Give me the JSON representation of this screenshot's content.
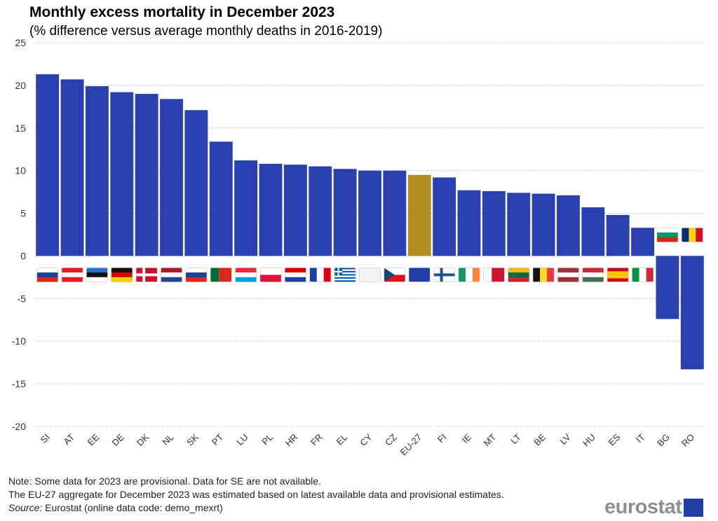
{
  "header": {
    "title": "Monthly excess mortality in December 2023",
    "subtitle": "(% difference versus average monthly deaths in 2016-2019)"
  },
  "notes": {
    "line1": "Note: Some data for 2023 are provisional. Data for SE are not available.",
    "line2": "The EU-27 aggregate for December 2023 was estimated based on latest available data and provisional estimates.",
    "source_label": "Source:",
    "source_text": " Eurostat (online data code: demo_mexrt)"
  },
  "logo": {
    "text": "eurostat"
  },
  "colors": {
    "bar": "#2a40b0",
    "highlight": "#b38f22",
    "grid": "#c8c8c8"
  },
  "chart_data": {
    "type": "bar",
    "title": "Monthly excess mortality in December 2023",
    "subtitle": "(% difference versus average monthly deaths in 2016-2019)",
    "xlabel": "",
    "ylabel": "",
    "ylim": [
      -20,
      25
    ],
    "yticks": [
      25,
      20,
      15,
      10,
      5,
      0,
      -5,
      -10,
      -15,
      -20
    ],
    "grid": true,
    "highlight_category": "EU-27",
    "categories": [
      "SI",
      "AT",
      "EE",
      "DE",
      "DK",
      "NL",
      "SK",
      "PT",
      "LU",
      "PL",
      "HR",
      "FR",
      "EL",
      "CY",
      "CZ",
      "EU-27",
      "FI",
      "IE",
      "MT",
      "LT",
      "BE",
      "LV",
      "HU",
      "ES",
      "IT",
      "BG",
      "RO"
    ],
    "values": [
      21.3,
      20.7,
      19.9,
      19.2,
      19.0,
      18.4,
      17.1,
      13.4,
      11.2,
      10.8,
      10.7,
      10.5,
      10.2,
      10.0,
      10.0,
      9.5,
      9.2,
      7.7,
      7.6,
      7.4,
      7.3,
      7.1,
      5.7,
      4.8,
      3.3,
      -7.4,
      -13.3
    ]
  }
}
